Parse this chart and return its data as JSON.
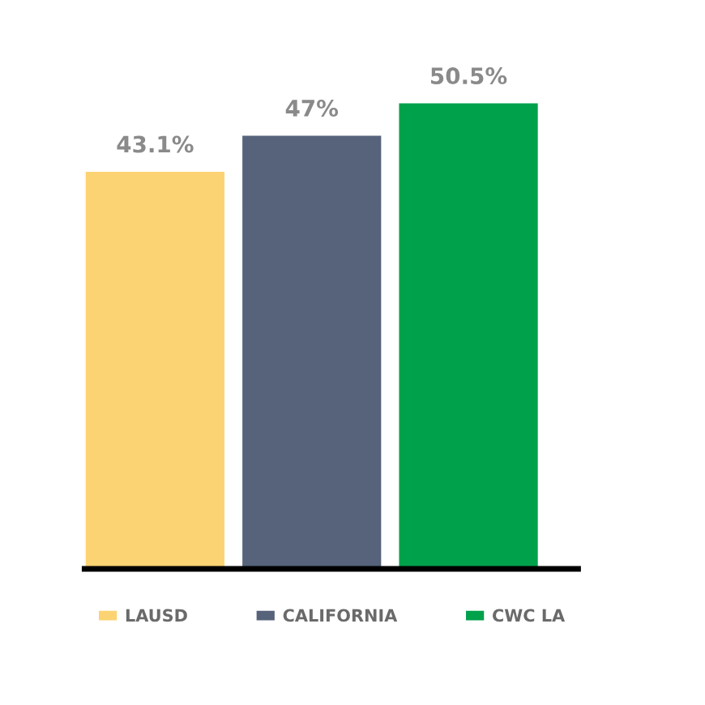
{
  "chart_data": {
    "type": "bar",
    "categories": [
      null,
      null,
      null
    ],
    "series": [
      {
        "name": "LAUSD",
        "color": "#fcd373",
        "values": [
          43.1,
          null,
          null
        ],
        "value_labels": [
          "43.1%",
          null,
          null
        ]
      },
      {
        "name": "CALIFORNIA",
        "color": "#56637b",
        "values": [
          null,
          47,
          null
        ],
        "value_labels": [
          null,
          "47%",
          null
        ]
      },
      {
        "name": "CWC LA",
        "color": "#00a14b",
        "values": [
          null,
          null,
          50.5
        ],
        "value_labels": [
          null,
          null,
          "50.5%"
        ]
      }
    ],
    "stacked": true,
    "tick_labels": false,
    "grid": false,
    "legend": "bottom"
  }
}
